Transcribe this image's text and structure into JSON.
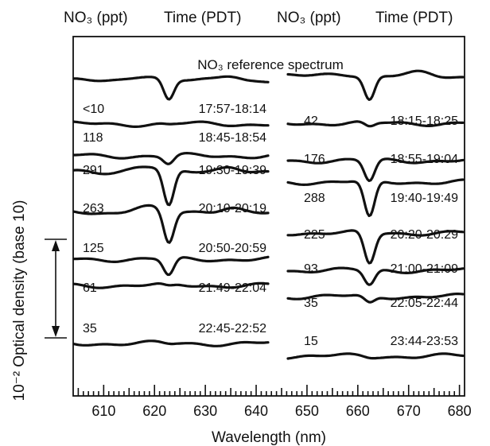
{
  "chart_data": {
    "type": "line",
    "title": "",
    "xlabel": "Wavelength (nm)",
    "ylabel": "10⁻² Optical density (base 10)",
    "xlim": [
      604,
      681
    ],
    "x_ticks": [
      610,
      620,
      630,
      640,
      650,
      660,
      670,
      680
    ],
    "grid": false,
    "scale_bar": "10⁻² optical density (double-headed arrow)",
    "panel_headers": [
      {
        "conc": "NO₃ (ppt)",
        "time": "Time (PDT)"
      },
      {
        "conc": "NO₃ (ppt)",
        "time": "Time (PDT)"
      }
    ],
    "reference_label": "NO₃ reference spectrum",
    "series": [
      {
        "panel": "left",
        "conc": "<10",
        "time": "17:57-18:14",
        "depth": 0.0
      },
      {
        "panel": "left",
        "conc": "118",
        "time": "18:45-18:54",
        "depth": 0.15
      },
      {
        "panel": "left",
        "conc": "291",
        "time": "19:30-19:39",
        "depth": 0.7
      },
      {
        "panel": "left",
        "conc": "263",
        "time": "20:10-20:19",
        "depth": 0.62
      },
      {
        "panel": "left",
        "conc": "125",
        "time": "20:50-20:59",
        "depth": 0.32
      },
      {
        "panel": "left",
        "conc": "61",
        "time": "21:49-22:04",
        "depth": 0.03
      },
      {
        "panel": "left",
        "conc": "35",
        "time": "22:45-22:52",
        "depth": 0.0
      },
      {
        "panel": "right",
        "conc": "42",
        "time": "18:15-18:25",
        "depth": 0.08
      },
      {
        "panel": "right",
        "conc": "176",
        "time": "18:55-19:04",
        "depth": 0.4
      },
      {
        "panel": "right",
        "conc": "288",
        "time": "19:40-19:49",
        "depth": 0.7
      },
      {
        "panel": "right",
        "conc": "225",
        "time": "20:20-20:29",
        "depth": 0.6
      },
      {
        "panel": "right",
        "conc": "93",
        "time": "21:00-21:09",
        "depth": 0.28
      },
      {
        "panel": "right",
        "conc": "35",
        "time": "22:05-22:44",
        "depth": 0.12
      },
      {
        "panel": "right",
        "conc": "15",
        "time": "23:44-23:53",
        "depth": 0.0
      }
    ]
  }
}
